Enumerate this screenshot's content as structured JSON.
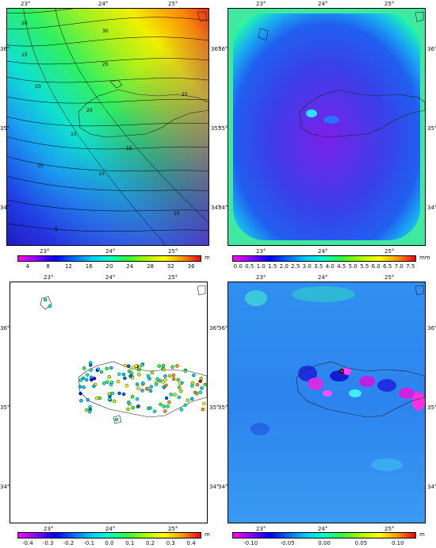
{
  "panels": [
    {
      "id": "a",
      "lon_labels": [
        "23°",
        "24°",
        "25°"
      ],
      "lat_labels": [
        "36°",
        "35°",
        "34°"
      ],
      "contour_labels": [
        "20",
        "25",
        "30",
        "15",
        "20",
        "25",
        "10",
        "15",
        "20",
        "5",
        "10",
        "15",
        "10"
      ],
      "colorbar": {
        "ticks": [
          "4",
          "8",
          "12",
          "16",
          "20",
          "24",
          "28",
          "32",
          "36"
        ],
        "unit": "m"
      }
    },
    {
      "id": "b",
      "lon_labels": [
        "23°",
        "24°",
        "25°"
      ],
      "lat_labels": [
        "36°",
        "35°",
        "34°"
      ],
      "colorbar": {
        "ticks": [
          "0.0",
          "0.5",
          "1.0",
          "1.5",
          "2.0",
          "2.5",
          "3.0",
          "3.5",
          "4.0",
          "4.5",
          "5.0",
          "5.5",
          "6.0",
          "6.5",
          "7.0",
          "7.5"
        ],
        "unit": "mm"
      }
    },
    {
      "id": "c",
      "lon_labels": [
        "23°",
        "24°",
        "25°"
      ],
      "lat_labels": [
        "36°",
        "35°",
        "34°"
      ],
      "colorbar": {
        "ticks": [
          "-0.4",
          "-0.3",
          "-0.2",
          "-0.1",
          "0.0",
          "0.1",
          "0.2",
          "0.3",
          "0.4"
        ],
        "unit": "m"
      }
    },
    {
      "id": "d",
      "lon_labels": [
        "23°",
        "24°",
        "25°"
      ],
      "lat_labels": [
        "36°",
        "35°",
        "34°"
      ],
      "colorbar": {
        "ticks": [
          "-0.10",
          "-0.05",
          "0.00",
          "0.05",
          "0.10"
        ],
        "unit": "m"
      }
    }
  ],
  "colors": {
    "rainbow": [
      "#ff00ff",
      "#8a00ff",
      "#0000ff",
      "#0066ff",
      "#00ccff",
      "#00ffcc",
      "#33ff33",
      "#aaff00",
      "#ffff00",
      "#ff9900",
      "#ff0000"
    ]
  }
}
